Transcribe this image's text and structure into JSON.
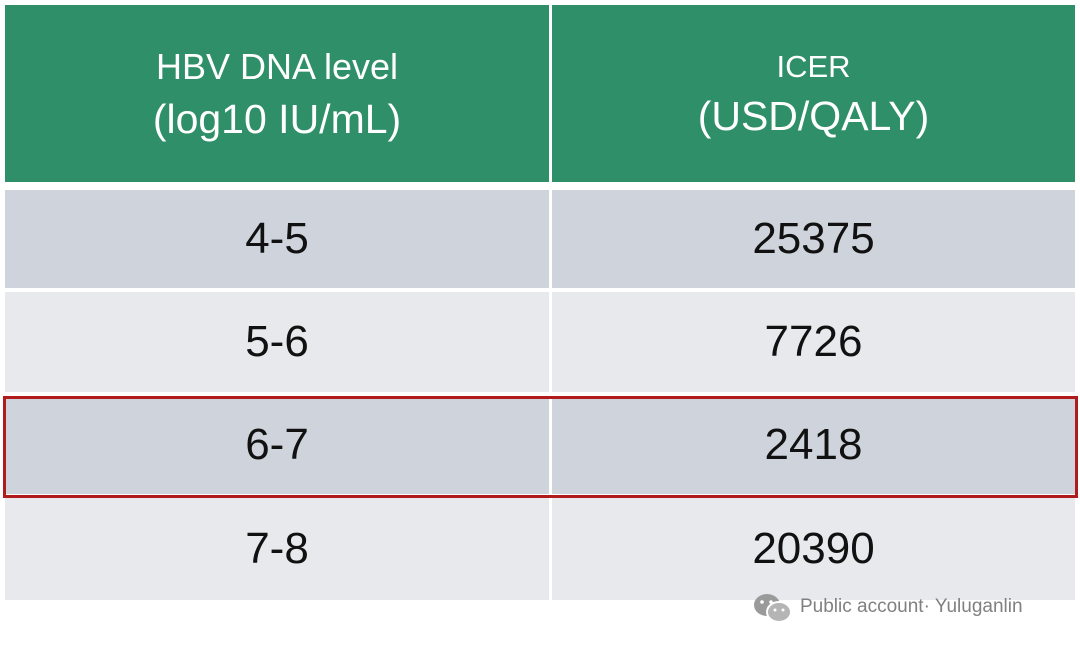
{
  "table": {
    "header": [
      [
        "HBV DNA level",
        "(log10 IU/mL)"
      ],
      [
        "ICER",
        "(USD/QALY)"
      ]
    ],
    "rows": [
      [
        "4-5",
        "25375"
      ],
      [
        "5-6",
        "7726"
      ],
      [
        "6-7",
        "2418"
      ],
      [
        "7-8",
        "20390"
      ]
    ]
  },
  "watermark": "Public account· Yuluganlin"
}
